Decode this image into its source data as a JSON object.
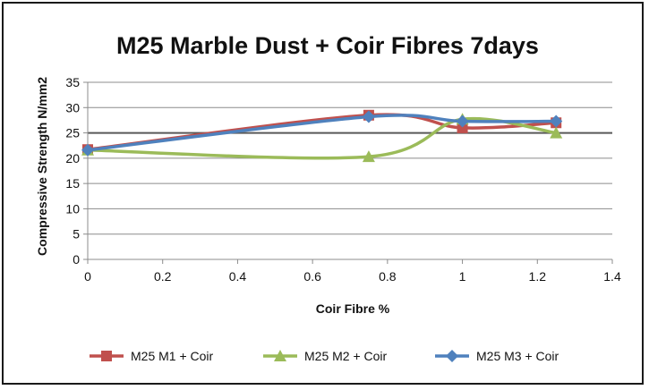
{
  "chart_data": {
    "type": "line",
    "title": "M25 Marble Dust + Coir Fibres 7days",
    "xlabel": "Coir Fibre %",
    "ylabel": "Compressive Strength  N/mm2",
    "xlim": [
      0,
      1.4
    ],
    "ylim": [
      0,
      35
    ],
    "x_ticks": [
      "0",
      "0.2",
      "0.4",
      "0.6",
      "0.8",
      "1",
      "1.2",
      "1.4"
    ],
    "y_ticks": [
      "0",
      "5",
      "10",
      "15",
      "20",
      "25",
      "30",
      "35"
    ],
    "grid": "horizontal",
    "legend_position": "bottom",
    "reference_line": 25,
    "series": [
      {
        "name": "M25 M1 + Coir",
        "color": "#c0504d",
        "marker": "square",
        "x": [
          0,
          0.75,
          1.0,
          1.25
        ],
        "y": [
          21.7,
          28.5,
          26.0,
          27.0
        ]
      },
      {
        "name": "M25 M2 + Coir",
        "color": "#9bbb59",
        "marker": "triangle",
        "x": [
          0,
          0.75,
          1.0,
          1.25
        ],
        "y": [
          21.6,
          20.3,
          27.7,
          25.0
        ]
      },
      {
        "name": "M25 M3 + Coir",
        "color": "#4f81bd",
        "marker": "diamond",
        "x": [
          0,
          0.75,
          1.0,
          1.25
        ],
        "y": [
          21.6,
          28.2,
          27.3,
          27.3
        ]
      }
    ]
  }
}
